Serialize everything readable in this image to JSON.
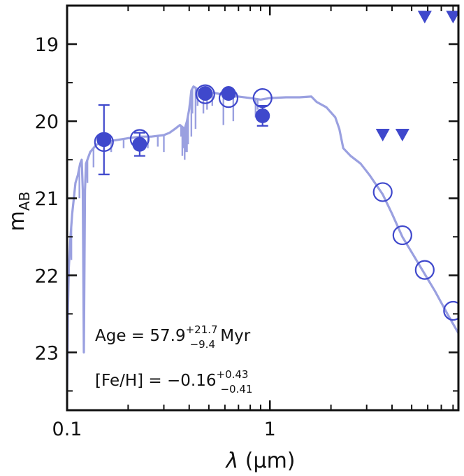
{
  "chart_data": {
    "type": "scatter",
    "xlabel_symbol": "λ",
    "xlabel_unit": "(μm)",
    "ylabel_main": "m",
    "ylabel_sub": "AB",
    "xscale": "log",
    "xlim": [
      0.1,
      8.5
    ],
    "ylim": [
      23.75,
      18.5
    ],
    "y_inverted": true,
    "x_ticks": [
      {
        "value": 0.1,
        "label": "0.1"
      },
      {
        "value": 1,
        "label": "1"
      }
    ],
    "y_ticks": [
      {
        "value": 19,
        "label": "19"
      },
      {
        "value": 20,
        "label": "20"
      },
      {
        "value": 21,
        "label": "21"
      },
      {
        "value": 22,
        "label": "22"
      },
      {
        "value": 23,
        "label": "23"
      }
    ],
    "colors": {
      "model": "#9aa0e0",
      "points": "#3f48cc"
    },
    "model_spectrum": [
      [
        0.1,
        23.5
      ],
      [
        0.101,
        22.4
      ],
      [
        0.102,
        21.9
      ],
      [
        0.104,
        21.5
      ],
      [
        0.106,
        21.2
      ],
      [
        0.108,
        21.0
      ],
      [
        0.11,
        20.8
      ],
      [
        0.113,
        20.7
      ],
      [
        0.116,
        20.55
      ],
      [
        0.118,
        20.5
      ],
      [
        0.1195,
        20.9
      ],
      [
        0.121,
        23.0
      ],
      [
        0.1225,
        20.9
      ],
      [
        0.124,
        20.55
      ],
      [
        0.13,
        20.4
      ],
      [
        0.14,
        20.3
      ],
      [
        0.15,
        20.28
      ],
      [
        0.17,
        20.25
      ],
      [
        0.2,
        20.22
      ],
      [
        0.23,
        20.2
      ],
      [
        0.26,
        20.2
      ],
      [
        0.3,
        20.18
      ],
      [
        0.32,
        20.15
      ],
      [
        0.34,
        20.1
      ],
      [
        0.36,
        20.05
      ],
      [
        0.38,
        20.1
      ],
      [
        0.39,
        20.0
      ],
      [
        0.4,
        19.85
      ],
      [
        0.41,
        19.6
      ],
      [
        0.42,
        19.55
      ],
      [
        0.45,
        19.6
      ],
      [
        0.5,
        19.62
      ],
      [
        0.55,
        19.64
      ],
      [
        0.6,
        19.66
      ],
      [
        0.65,
        19.68
      ],
      [
        0.7,
        19.68
      ],
      [
        0.8,
        19.7
      ],
      [
        0.9,
        19.72
      ],
      [
        1.0,
        19.7
      ],
      [
        1.2,
        19.69
      ],
      [
        1.4,
        19.69
      ],
      [
        1.6,
        19.68
      ],
      [
        1.7,
        19.75
      ],
      [
        1.9,
        19.82
      ],
      [
        2.1,
        19.95
      ],
      [
        2.2,
        20.1
      ],
      [
        2.3,
        20.35
      ],
      [
        2.5,
        20.45
      ],
      [
        2.8,
        20.55
      ],
      [
        3.1,
        20.7
      ],
      [
        3.6,
        20.95
      ],
      [
        4.0,
        21.2
      ],
      [
        4.5,
        21.5
      ],
      [
        5.0,
        21.7
      ],
      [
        5.7,
        21.95
      ],
      [
        6.5,
        22.2
      ],
      [
        7.5,
        22.5
      ],
      [
        8.5,
        22.75
      ]
    ],
    "model_absorption_lines": [
      {
        "x": 0.105,
        "depth_to": 21.8
      },
      {
        "x": 0.115,
        "depth_to": 21.0
      },
      {
        "x": 0.126,
        "depth_to": 20.8
      },
      {
        "x": 0.135,
        "depth_to": 20.6
      },
      {
        "x": 0.165,
        "depth_to": 20.4
      },
      {
        "x": 0.19,
        "depth_to": 20.35
      },
      {
        "x": 0.25,
        "depth_to": 20.35
      },
      {
        "x": 0.28,
        "depth_to": 20.33
      },
      {
        "x": 0.3,
        "depth_to": 20.4
      },
      {
        "x": 0.365,
        "depth_to": 20.2
      },
      {
        "x": 0.37,
        "depth_to": 20.45
      },
      {
        "x": 0.375,
        "depth_to": 20.35
      },
      {
        "x": 0.38,
        "depth_to": 20.5
      },
      {
        "x": 0.385,
        "depth_to": 20.4
      },
      {
        "x": 0.39,
        "depth_to": 20.4
      },
      {
        "x": 0.395,
        "depth_to": 20.3
      },
      {
        "x": 0.41,
        "depth_to": 20.2
      },
      {
        "x": 0.415,
        "depth_to": 19.9
      },
      {
        "x": 0.43,
        "depth_to": 20.1
      },
      {
        "x": 0.44,
        "depth_to": 19.8
      },
      {
        "x": 0.47,
        "depth_to": 19.9
      },
      {
        "x": 0.49,
        "depth_to": 19.85
      },
      {
        "x": 0.52,
        "depth_to": 19.8
      },
      {
        "x": 0.59,
        "depth_to": 20.05
      },
      {
        "x": 0.66,
        "depth_to": 20.0
      },
      {
        "x": 0.85,
        "depth_to": 19.95
      },
      {
        "x": 0.87,
        "depth_to": 19.85
      }
    ],
    "model_photometry": [
      {
        "x": 0.152,
        "y": 20.27
      },
      {
        "x": 0.228,
        "y": 20.23
      },
      {
        "x": 0.48,
        "y": 19.65
      },
      {
        "x": 0.625,
        "y": 19.7
      },
      {
        "x": 0.92,
        "y": 19.7
      },
      {
        "x": 3.6,
        "y": 20.92
      },
      {
        "x": 4.5,
        "y": 21.48
      },
      {
        "x": 5.8,
        "y": 21.93
      },
      {
        "x": 8.0,
        "y": 22.46
      }
    ],
    "observed_photometry": [
      {
        "x": 0.152,
        "y": 20.24,
        "yerr": 0.45
      },
      {
        "x": 0.228,
        "y": 20.3,
        "yerr": 0.15
      },
      {
        "x": 0.48,
        "y": 19.64,
        "yerr": 0.0
      },
      {
        "x": 0.625,
        "y": 19.64,
        "yerr": 0.0
      },
      {
        "x": 0.92,
        "y": 19.93,
        "yerr": 0.13
      }
    ],
    "upper_limits": [
      {
        "x": 3.6,
        "y": 20.18
      },
      {
        "x": 4.5,
        "y": 20.18
      },
      {
        "x": 5.8,
        "y": 18.65
      },
      {
        "x": 8.0,
        "y": 18.65
      }
    ],
    "annotations": {
      "age": {
        "prefix": "Age = 57.9",
        "sup": "+21.7",
        "sub": "−9.4",
        "suffix": " Myr"
      },
      "feh": {
        "prefix": "[Fe/H] = −0.16",
        "sup": "+0.43",
        "sub": "−0.41"
      }
    }
  }
}
